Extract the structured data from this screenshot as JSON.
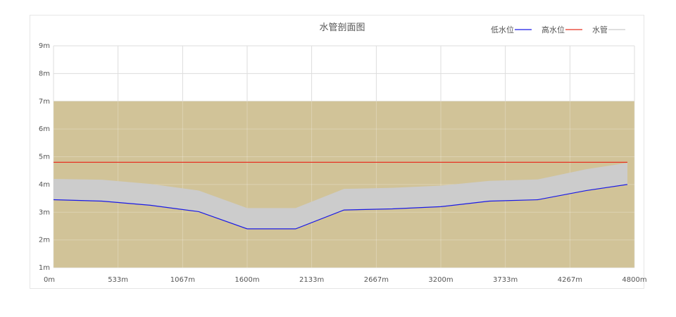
{
  "chart_data": {
    "type": "area",
    "title": "水管剖面图",
    "xlabel": "",
    "ylabel": "",
    "x": [
      0,
      400,
      800,
      1200,
      1600,
      2000,
      2400,
      2800,
      3200,
      3600,
      4000,
      4400,
      4800
    ],
    "xlim": [
      0,
      4800
    ],
    "ylim": [
      1,
      9
    ],
    "x_ticks": [
      0,
      533,
      1067,
      1600,
      2133,
      2667,
      3200,
      3733,
      4267,
      4800
    ],
    "x_tick_labels": [
      "0m",
      "533m",
      "1067m",
      "1600m",
      "2133m",
      "2667m",
      "3200m",
      "3733m",
      "4267m",
      "4800m"
    ],
    "y_ticks": [
      1,
      2,
      3,
      4,
      5,
      6,
      7,
      8,
      9
    ],
    "y_tick_labels": [
      "1m",
      "2m",
      "3m",
      "4m",
      "5m",
      "6m",
      "7m",
      "8m",
      "9m"
    ],
    "grid": true,
    "legend_position": "top-right",
    "ground": {
      "y_top": 7,
      "color": "#d1c398"
    },
    "series": [
      {
        "name": "低水位",
        "kind": "line",
        "color": "#1a1ae6",
        "values": [
          3.45,
          3.4,
          3.25,
          3.02,
          2.4,
          2.4,
          3.08,
          3.12,
          3.2,
          3.4,
          3.45,
          3.78,
          4.0
        ]
      },
      {
        "name": "高水位",
        "kind": "line",
        "color": "#e63222",
        "values": [
          4.8,
          4.8,
          4.8,
          4.8,
          4.8,
          4.8,
          4.8,
          4.8,
          4.8,
          4.8,
          4.8,
          4.8,
          4.8
        ]
      },
      {
        "name": "水管",
        "kind": "band",
        "color": "#cccccc",
        "lower": [
          3.45,
          3.4,
          3.25,
          3.02,
          2.4,
          2.4,
          3.08,
          3.12,
          3.2,
          3.4,
          3.45,
          3.78,
          4.0
        ],
        "upper": [
          4.2,
          4.17,
          4.02,
          3.78,
          3.15,
          3.15,
          3.84,
          3.88,
          3.96,
          4.13,
          4.18,
          4.55,
          4.78
        ]
      }
    ]
  }
}
